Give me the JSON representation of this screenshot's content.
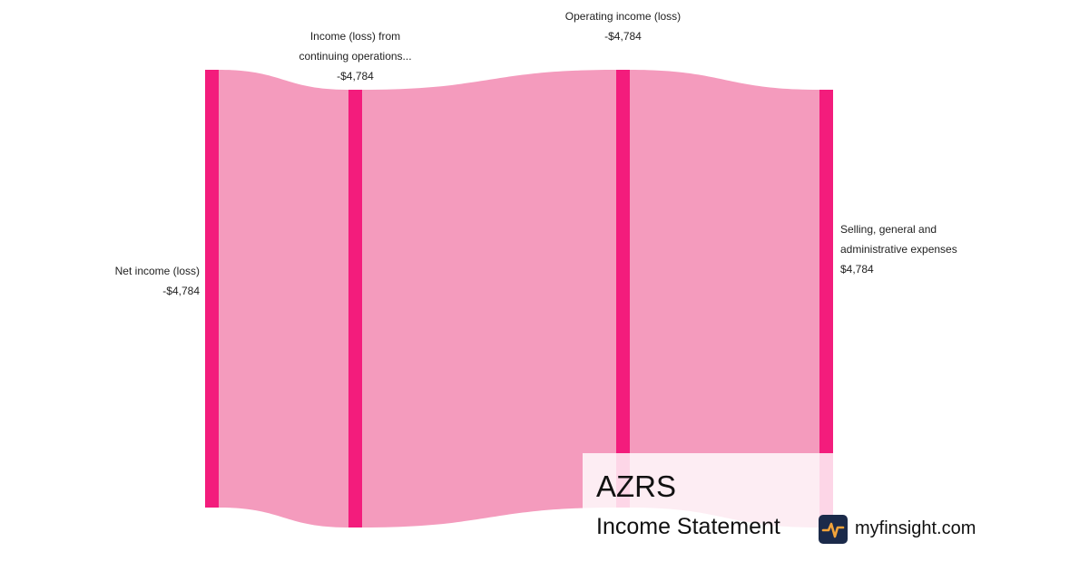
{
  "chart_data": {
    "type": "sankey",
    "nodes": [
      {
        "label": "Net income (loss)",
        "value": -4784,
        "value_label": "-$4,784"
      },
      {
        "label": "Income (loss) from continuing operations...",
        "value": -4784,
        "value_label": "-$4,784"
      },
      {
        "label": "Operating income (loss)",
        "value": -4784,
        "value_label": "-$4,784"
      },
      {
        "label": "Selling, general and administrative expenses",
        "value": 4784,
        "value_label": "$4,784"
      }
    ],
    "links": [
      {
        "source": 0,
        "target": 1,
        "value": 4784
      },
      {
        "source": 1,
        "target": 2,
        "value": 4784
      },
      {
        "source": 2,
        "target": 3,
        "value": 4784
      }
    ],
    "node_color": "#f31c7c",
    "link_color": "#f49bbd"
  },
  "overlay": {
    "ticker": "AZRS",
    "subtitle": "Income Statement",
    "brand": "myfinsight.com"
  }
}
